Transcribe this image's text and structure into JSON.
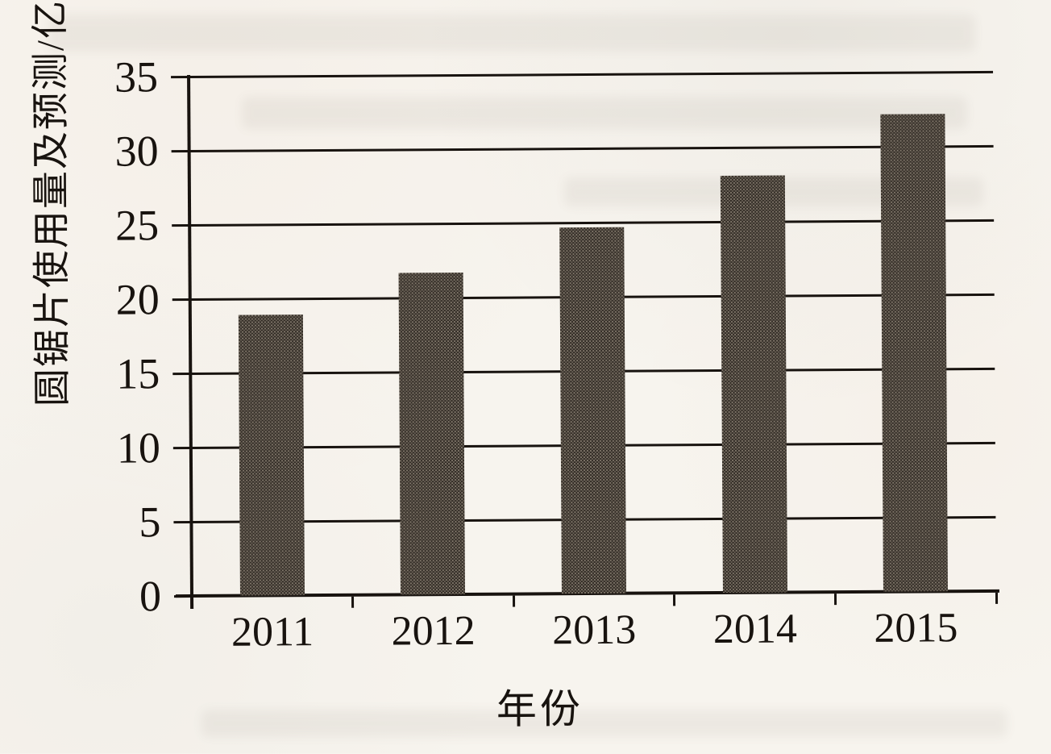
{
  "chart_data": {
    "type": "bar",
    "title": "",
    "xlabel": "年份",
    "ylabel": "圆锯片使用量及预测/亿片",
    "categories": [
      "2011",
      "2012",
      "2013",
      "2014",
      "2015"
    ],
    "values": [
      19,
      21.8,
      24.8,
      28.2,
      32.3
    ],
    "ylim": [
      0,
      35
    ],
    "yticks": [
      0,
      5,
      10,
      15,
      20,
      25,
      30,
      35
    ],
    "grid": "horizontal",
    "legend_position": "none",
    "colors": {
      "bar": "#2f2923",
      "axis": "#18130f",
      "text": "#18130f",
      "paper": "#f7f4ee"
    }
  }
}
